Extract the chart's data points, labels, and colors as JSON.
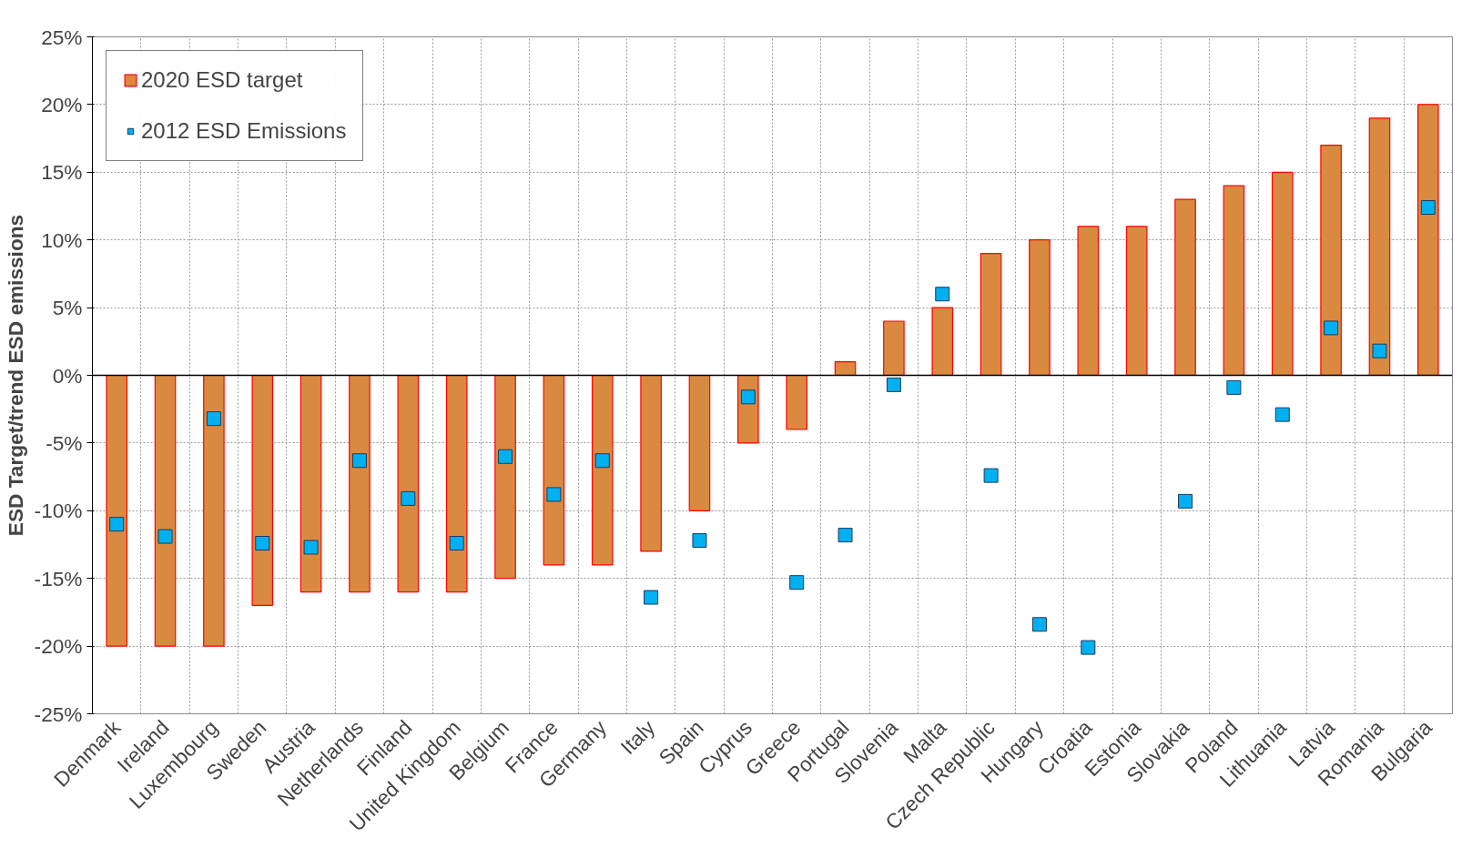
{
  "chart_data": {
    "type": "bar",
    "ylabel": "ESD Target/trend ESD emissions",
    "categories": [
      "Denmark",
      "Ireland",
      "Luxembourg",
      "Sweden",
      "Austria",
      "Netherlands",
      "Finland",
      "United Kingdom",
      "Belgium",
      "France",
      "Germany",
      "Italy",
      "Spain",
      "Cyprus",
      "Greece",
      "Portugal",
      "Slovenia",
      "Malta",
      "Czech Republic",
      "Hungary",
      "Croatia",
      "Estonia",
      "Slovakia",
      "Poland",
      "Lithuania",
      "Latvia",
      "Romania",
      "Bulgaria"
    ],
    "series": [
      {
        "name": "2020 ESD target",
        "color": "#d98a40",
        "values": [
          -20,
          -20,
          -20,
          -17,
          -16,
          -16,
          -16,
          -16,
          -15,
          -14,
          -14,
          -13,
          -10,
          -5,
          -4,
          1,
          4,
          5,
          9,
          10,
          11,
          11,
          13,
          14,
          15,
          17,
          19,
          20
        ]
      },
      {
        "name": "2012 ESD Emissions",
        "type": "scatter",
        "color": "#00b0f0",
        "marker": "square",
        "values": [
          -11.0,
          -11.9,
          -3.2,
          -12.4,
          -12.7,
          -6.3,
          -9.1,
          -12.4,
          -6.0,
          -8.8,
          -6.3,
          -16.4,
          -12.2,
          -1.6,
          -15.3,
          -11.8,
          -0.7,
          6.0,
          -7.4,
          -18.4,
          -20.1,
          null,
          -9.3,
          -0.9,
          -2.9,
          3.5,
          1.8,
          12.4
        ]
      }
    ],
    "ylim": [
      -25,
      25
    ],
    "yticks": [
      {
        "value": -25,
        "label": "-25%"
      },
      {
        "value": -20,
        "label": "-20%"
      },
      {
        "value": -15,
        "label": "-15%"
      },
      {
        "value": -10,
        "label": "-10%"
      },
      {
        "value": -5,
        "label": "-5%"
      },
      {
        "value": 0,
        "label": "0%"
      },
      {
        "value": 5,
        "label": "5%"
      },
      {
        "value": 10,
        "label": "10%"
      },
      {
        "value": 15,
        "label": "15%"
      },
      {
        "value": 20,
        "label": "20%"
      },
      {
        "value": 25,
        "label": "25%"
      }
    ],
    "grid": true,
    "legend": "top left"
  }
}
